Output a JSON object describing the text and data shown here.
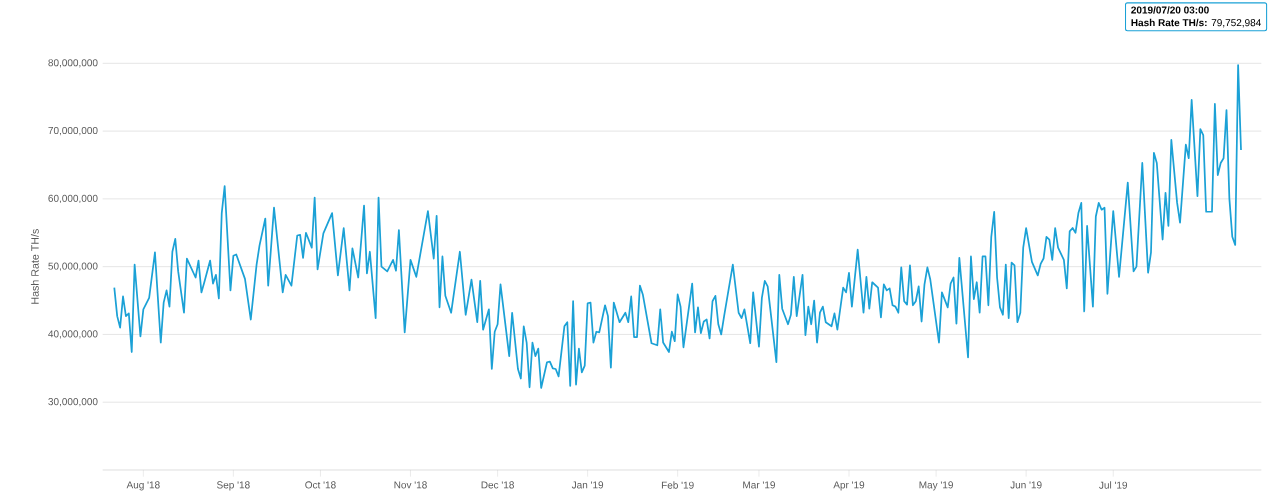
{
  "chart_data": {
    "type": "line",
    "ylabel": "Hash Rate TH/s",
    "x": [
      "2018-07-22",
      "2018-07-23",
      "2018-07-24",
      "2018-07-25",
      "2018-07-26",
      "2018-07-27",
      "2018-07-28",
      "2018-07-29",
      "2018-07-31",
      "2018-08-01",
      "2018-08-03",
      "2018-08-05",
      "2018-08-07",
      "2018-08-08",
      "2018-08-09",
      "2018-08-10",
      "2018-08-11",
      "2018-08-12",
      "2018-08-13",
      "2018-08-15",
      "2018-08-16",
      "2018-08-19",
      "2018-08-20",
      "2018-08-21",
      "2018-08-22",
      "2018-08-24",
      "2018-08-25",
      "2018-08-26",
      "2018-08-27",
      "2018-08-28",
      "2018-08-29",
      "2018-08-31",
      "2018-09-01",
      "2018-09-02",
      "2018-09-05",
      "2018-09-07",
      "2018-09-09",
      "2018-09-10",
      "2018-09-12",
      "2018-09-13",
      "2018-09-15",
      "2018-09-18",
      "2018-09-19",
      "2018-09-21",
      "2018-09-23",
      "2018-09-24",
      "2018-09-25",
      "2018-09-26",
      "2018-09-28",
      "2018-09-29",
      "2018-09-30",
      "2018-10-02",
      "2018-10-05",
      "2018-10-07",
      "2018-10-09",
      "2018-10-11",
      "2018-10-12",
      "2018-10-14",
      "2018-10-16",
      "2018-10-17",
      "2018-10-18",
      "2018-10-20",
      "2018-10-21",
      "2018-10-22",
      "2018-10-24",
      "2018-10-26",
      "2018-10-27",
      "2018-10-28",
      "2018-10-30",
      "2018-11-01",
      "2018-11-03",
      "2018-11-07",
      "2018-11-09",
      "2018-11-10",
      "2018-11-11",
      "2018-11-12",
      "2018-11-13",
      "2018-11-15",
      "2018-11-18",
      "2018-11-20",
      "2018-11-22",
      "2018-11-24",
      "2018-11-25",
      "2018-11-26",
      "2018-11-28",
      "2018-11-29",
      "2018-11-30",
      "2018-12-01",
      "2018-12-02",
      "2018-12-05",
      "2018-12-06",
      "2018-12-08",
      "2018-12-09",
      "2018-12-10",
      "2018-12-11",
      "2018-12-12",
      "2018-12-13",
      "2018-12-14",
      "2018-12-15",
      "2018-12-16",
      "2018-12-18",
      "2018-12-19",
      "2018-12-20",
      "2018-12-21",
      "2018-12-22",
      "2018-12-24",
      "2018-12-25",
      "2018-12-26",
      "2018-12-27",
      "2018-12-28",
      "2018-12-29",
      "2018-12-30",
      "2018-12-31",
      "2019-01-01",
      "2019-01-02",
      "2019-01-03",
      "2019-01-04",
      "2019-01-05",
      "2019-01-07",
      "2019-01-08",
      "2019-01-09",
      "2019-01-10",
      "2019-01-12",
      "2019-01-14",
      "2019-01-15",
      "2019-01-16",
      "2019-01-17",
      "2019-01-18",
      "2019-01-19",
      "2019-01-20",
      "2019-01-23",
      "2019-01-25",
      "2019-01-26",
      "2019-01-27",
      "2019-01-29",
      "2019-01-30",
      "2019-01-31",
      "2019-02-01",
      "2019-02-02",
      "2019-02-03",
      "2019-02-06",
      "2019-02-07",
      "2019-02-08",
      "2019-02-09",
      "2019-02-10",
      "2019-02-11",
      "2019-02-12",
      "2019-02-13",
      "2019-02-14",
      "2019-02-15",
      "2019-02-16",
      "2019-02-17",
      "2019-02-20",
      "2019-02-22",
      "2019-02-23",
      "2019-02-24",
      "2019-02-26",
      "2019-02-27",
      "2019-03-01",
      "2019-03-02",
      "2019-03-03",
      "2019-03-04",
      "2019-03-07",
      "2019-03-08",
      "2019-03-09",
      "2019-03-11",
      "2019-03-12",
      "2019-03-13",
      "2019-03-14",
      "2019-03-16",
      "2019-03-17",
      "2019-03-18",
      "2019-03-19",
      "2019-03-20",
      "2019-03-21",
      "2019-03-22",
      "2019-03-23",
      "2019-03-24",
      "2019-03-26",
      "2019-03-27",
      "2019-03-28",
      "2019-03-30",
      "2019-03-31",
      "2019-04-01",
      "2019-04-02",
      "2019-04-04",
      "2019-04-06",
      "2019-04-07",
      "2019-04-08",
      "2019-04-09",
      "2019-04-11",
      "2019-04-12",
      "2019-04-13",
      "2019-04-14",
      "2019-04-15",
      "2019-04-16",
      "2019-04-17",
      "2019-04-18",
      "2019-04-19",
      "2019-04-20",
      "2019-04-21",
      "2019-04-22",
      "2019-04-23",
      "2019-04-24",
      "2019-04-25",
      "2019-04-26",
      "2019-04-27",
      "2019-04-28",
      "2019-04-29",
      "2019-05-02",
      "2019-05-03",
      "2019-05-05",
      "2019-05-06",
      "2019-05-07",
      "2019-05-08",
      "2019-05-09",
      "2019-05-12",
      "2019-05-13",
      "2019-05-14",
      "2019-05-15",
      "2019-05-16",
      "2019-05-17",
      "2019-05-18",
      "2019-05-19",
      "2019-05-20",
      "2019-05-21",
      "2019-05-22",
      "2019-05-23",
      "2019-05-24",
      "2019-05-25",
      "2019-05-26",
      "2019-05-27",
      "2019-05-28",
      "2019-05-29",
      "2019-05-30",
      "2019-05-31",
      "2019-06-01",
      "2019-06-03",
      "2019-06-05",
      "2019-06-06",
      "2019-06-07",
      "2019-06-08",
      "2019-06-09",
      "2019-06-10",
      "2019-06-11",
      "2019-06-12",
      "2019-06-14",
      "2019-06-15",
      "2019-06-16",
      "2019-06-17",
      "2019-06-18",
      "2019-06-19",
      "2019-06-20",
      "2019-06-21",
      "2019-06-22",
      "2019-06-24",
      "2019-06-25",
      "2019-06-26",
      "2019-06-27",
      "2019-06-28",
      "2019-06-29",
      "2019-07-01",
      "2019-07-03",
      "2019-07-06",
      "2019-07-08",
      "2019-07-09",
      "2019-07-11",
      "2019-07-13",
      "2019-07-14",
      "2019-07-15",
      "2019-07-16",
      "2019-07-18",
      "2019-07-19",
      "2019-07-20",
      "2019-07-21",
      "2019-07-23",
      "2019-07-24",
      "2019-07-26",
      "2019-07-27",
      "2019-07-28",
      "2019-07-30",
      "2019-07-31",
      "2019-08-01",
      "2019-08-02",
      "2019-08-04",
      "2019-08-05",
      "2019-08-06",
      "2019-08-07",
      "2019-08-08",
      "2019-08-09",
      "2019-08-10",
      "2019-08-11",
      "2019-08-12",
      "2019-08-13",
      "2019-08-14"
    ],
    "series": [
      {
        "color": "#1ba1d6",
        "values": [
          46900000,
          42700000,
          41000000,
          45600000,
          42700000,
          43100000,
          37400000,
          50300000,
          39700000,
          43700000,
          45400000,
          52100000,
          38800000,
          44700000,
          46500000,
          44100000,
          52200000,
          54100000,
          49300000,
          43200000,
          51200000,
          48400000,
          50900000,
          46200000,
          47700000,
          50900000,
          47500000,
          48800000,
          45300000,
          57900000,
          61900000,
          46500000,
          51600000,
          51800000,
          48200000,
          42200000,
          50300000,
          53100000,
          57100000,
          47200000,
          58700000,
          46200000,
          48800000,
          47200000,
          54600000,
          54700000,
          51300000,
          55000000,
          52800000,
          60200000,
          49600000,
          54900000,
          57900000,
          48700000,
          55700000,
          46500000,
          52700000,
          48400000,
          59000000,
          49000000,
          52200000,
          42400000,
          60200000,
          50000000,
          49300000,
          51000000,
          49400000,
          55400000,
          40300000,
          51000000,
          48500000,
          58200000,
          51200000,
          57500000,
          44000000,
          51500000,
          45700000,
          43200000,
          52200000,
          42900000,
          48100000,
          41800000,
          47900000,
          40700000,
          43700000,
          34900000,
          40400000,
          41500000,
          47400000,
          36800000,
          43200000,
          34900000,
          33500000,
          41200000,
          38800000,
          32200000,
          38800000,
          36800000,
          37900000,
          32100000,
          35900000,
          36000000,
          35000000,
          34900000,
          33800000,
          41200000,
          41800000,
          32400000,
          44900000,
          32600000,
          37900000,
          34400000,
          35400000,
          44600000,
          44700000,
          38800000,
          40400000,
          40300000,
          44300000,
          42700000,
          35100000,
          44700000,
          41800000,
          43200000,
          41800000,
          45600000,
          39600000,
          39600000,
          47200000,
          45900000,
          38700000,
          38400000,
          43700000,
          38800000,
          37400000,
          40400000,
          39000000,
          45900000,
          44100000,
          38100000,
          47500000,
          40300000,
          44000000,
          40200000,
          41900000,
          42200000,
          39400000,
          44900000,
          45700000,
          41500000,
          40000000,
          42700000,
          50300000,
          43200000,
          42400000,
          43700000,
          38700000,
          46200000,
          38200000,
          45400000,
          47900000,
          47100000,
          35900000,
          48800000,
          43800000,
          41500000,
          42900000,
          48500000,
          42700000,
          48800000,
          39900000,
          44100000,
          41500000,
          45000000,
          38800000,
          43200000,
          44100000,
          41800000,
          41200000,
          43100000,
          40700000,
          46900000,
          46200000,
          49100000,
          44100000,
          52500000,
          43200000,
          48500000,
          43800000,
          47700000,
          46900000,
          42500000,
          47400000,
          46500000,
          46800000,
          44300000,
          44100000,
          43200000,
          49900000,
          44900000,
          44400000,
          50200000,
          44300000,
          44900000,
          47100000,
          41900000,
          47400000,
          49900000,
          48100000,
          38800000,
          46200000,
          44000000,
          47500000,
          48400000,
          41600000,
          51300000,
          36600000,
          51500000,
          45200000,
          47700000,
          43200000,
          51500000,
          51500000,
          44300000,
          54400000,
          58100000,
          48400000,
          44000000,
          42900000,
          50300000,
          42400000,
          50600000,
          50200000,
          41800000,
          43200000,
          52800000,
          55700000,
          50700000,
          48700000,
          50400000,
          51200000,
          54400000,
          54000000,
          51000000,
          55700000,
          52800000,
          51000000,
          46800000,
          55200000,
          55700000,
          55000000,
          57900000,
          59400000,
          43400000,
          56000000,
          44100000,
          57400000,
          59400000,
          58400000,
          58700000,
          46000000,
          58200000,
          48500000,
          62400000,
          49300000,
          50000000,
          65300000,
          49100000,
          52100000,
          66800000,
          65300000,
          54000000,
          60900000,
          56000000,
          68700000,
          59400000,
          56500000,
          68000000,
          66000000,
          74600000,
          60400000,
          70300000,
          69400000,
          58100000,
          58100000,
          74000000,
          63500000,
          65300000,
          66000000,
          73100000,
          60000000,
          54400000,
          53200000,
          79752984,
          67200000
        ]
      }
    ],
    "xlim": [
      "2018-07-18",
      "2019-08-21"
    ],
    "xticks": [
      {
        "value": "2018-08-01",
        "label": "Aug '18"
      },
      {
        "value": "2018-09-01",
        "label": "Sep '18"
      },
      {
        "value": "2018-10-01",
        "label": "Oct '18"
      },
      {
        "value": "2018-11-01",
        "label": "Nov '18"
      },
      {
        "value": "2018-12-01",
        "label": "Dec '18"
      },
      {
        "value": "2019-01-01",
        "label": "Jan '19"
      },
      {
        "value": "2019-02-01",
        "label": "Feb '19"
      },
      {
        "value": "2019-03-01",
        "label": "Mar '19"
      },
      {
        "value": "2019-04-01",
        "label": "Apr '19"
      },
      {
        "value": "2019-05-01",
        "label": "May '19"
      },
      {
        "value": "2019-06-01",
        "label": "Jun '19"
      },
      {
        "value": "2019-07-01",
        "label": "Jul '19"
      }
    ],
    "ylim": [
      20000000,
      80000000
    ],
    "yticks": [
      {
        "value": 30000000,
        "label": "30,000,000"
      },
      {
        "value": 40000000,
        "label": "40,000,000"
      },
      {
        "value": 50000000,
        "label": "50,000,000"
      },
      {
        "value": 60000000,
        "label": "60,000,000"
      },
      {
        "value": 70000000,
        "label": "70,000,000"
      },
      {
        "value": 80000000,
        "label": "80,000,000"
      }
    ],
    "grid": "y",
    "annotations": [
      "2019/07/20 03:00",
      "**Hash Rate TH/s:** 79,752,984"
    ]
  }
}
